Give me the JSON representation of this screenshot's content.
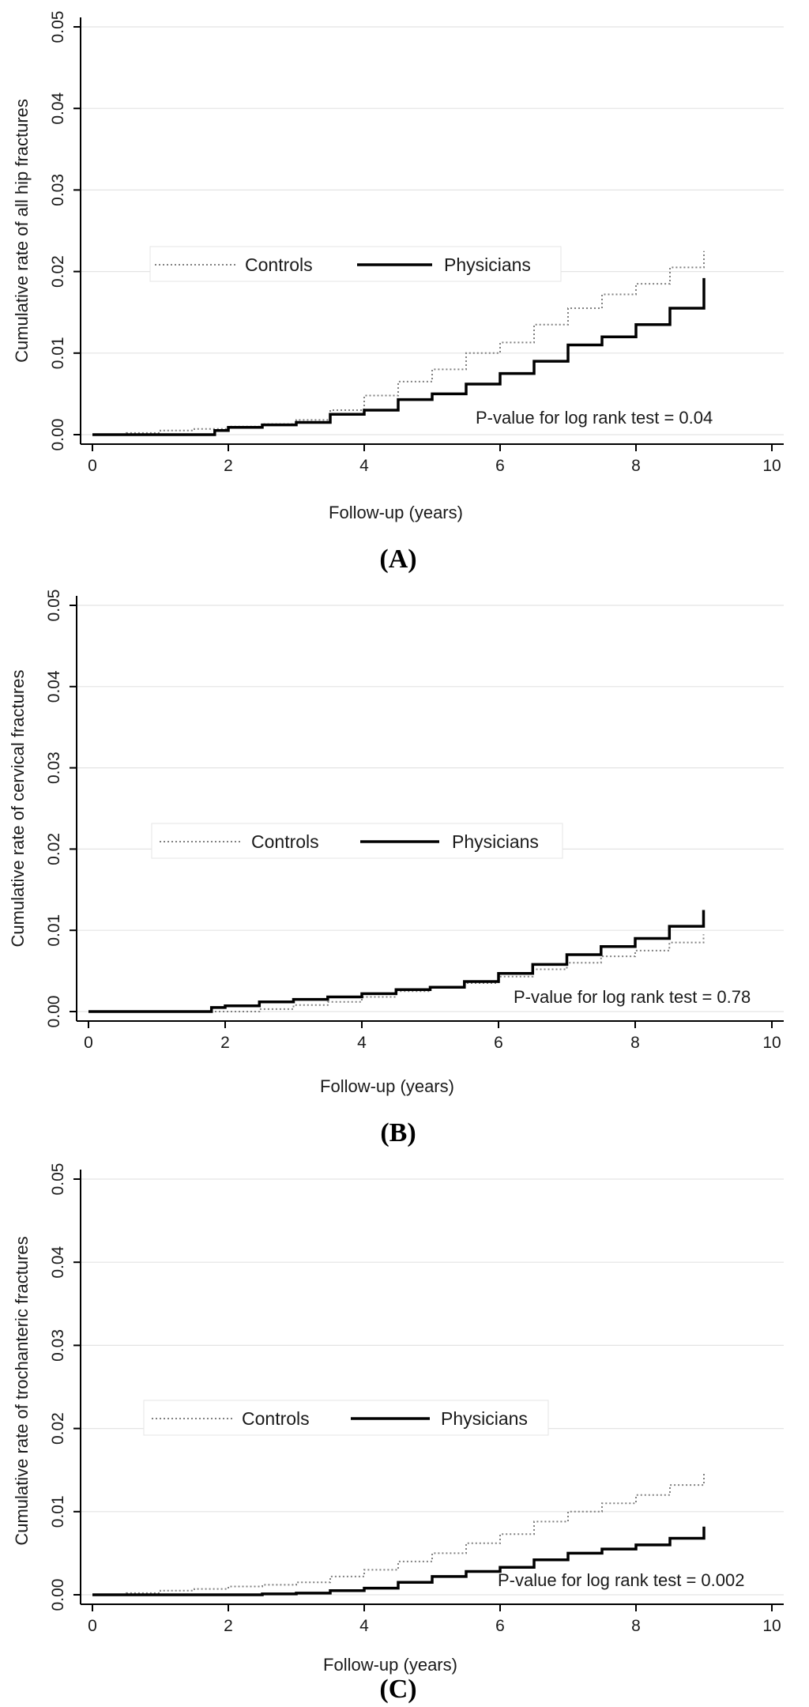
{
  "chart_data": [
    {
      "type": "line",
      "panel_label": "(A)",
      "title": "",
      "xlabel": "Follow-up (years)",
      "ylabel": "Cumulative rate of all hip fractures",
      "xlim": [
        0,
        10
      ],
      "ylim": [
        0,
        0.05
      ],
      "x_ticks": [
        "0",
        "2",
        "4",
        "6",
        "8",
        "10"
      ],
      "y_ticks": [
        "0.00",
        "0.01",
        "0.02",
        "0.03",
        "0.04",
        "0.05"
      ],
      "grid": true,
      "legend": [
        "Controls",
        "Physicians"
      ],
      "legend_placement": "upper-left, inside plot",
      "annotation": "P-value for log rank test = 0.04",
      "series": [
        {
          "name": "Controls",
          "style": "dotted",
          "color": "#808080",
          "points": [
            [
              0,
              0
            ],
            [
              0.5,
              0.0002
            ],
            [
              1,
              0.0005
            ],
            [
              1.5,
              0.0007
            ],
            [
              2,
              0.001
            ],
            [
              2.5,
              0.0013
            ],
            [
              3,
              0.0018
            ],
            [
              3.5,
              0.003
            ],
            [
              4,
              0.0048
            ],
            [
              4.5,
              0.0065
            ],
            [
              5,
              0.008
            ],
            [
              5.5,
              0.01
            ],
            [
              6,
              0.0113
            ],
            [
              6.5,
              0.0135
            ],
            [
              7,
              0.0155
            ],
            [
              7.5,
              0.0172
            ],
            [
              8,
              0.0185
            ],
            [
              8.5,
              0.0205
            ],
            [
              9,
              0.0225
            ]
          ]
        },
        {
          "name": "Physicians",
          "style": "solid",
          "color": "#000000",
          "points": [
            [
              0,
              0
            ],
            [
              1.6,
              0
            ],
            [
              1.8,
              0.0005
            ],
            [
              2,
              0.0009
            ],
            [
              2.5,
              0.0012
            ],
            [
              3,
              0.0015
            ],
            [
              3.5,
              0.0025
            ],
            [
              4,
              0.003
            ],
            [
              4.5,
              0.0043
            ],
            [
              5,
              0.005
            ],
            [
              5.5,
              0.0062
            ],
            [
              6,
              0.0075
            ],
            [
              6.5,
              0.009
            ],
            [
              7,
              0.011
            ],
            [
              7.5,
              0.012
            ],
            [
              8,
              0.0135
            ],
            [
              8.5,
              0.0155
            ],
            [
              9,
              0.0192
            ]
          ]
        }
      ]
    },
    {
      "type": "line",
      "panel_label": "(B)",
      "title": "",
      "xlabel": "Follow-up (years)",
      "ylabel": "Cumulative rate of cervical fractures",
      "xlim": [
        0,
        10
      ],
      "ylim": [
        0,
        0.05
      ],
      "x_ticks": [
        "0",
        "2",
        "4",
        "6",
        "8",
        "10"
      ],
      "y_ticks": [
        "0.00",
        "0.01",
        "0.02",
        "0.03",
        "0.04",
        "0.05"
      ],
      "grid": true,
      "legend": [
        "Controls",
        "Physicians"
      ],
      "legend_placement": "upper-left, inside plot",
      "annotation": "P-value for log rank test = 0.78",
      "series": [
        {
          "name": "Controls",
          "style": "dotted",
          "color": "#808080",
          "points": [
            [
              0,
              0
            ],
            [
              2,
              0
            ],
            [
              2.5,
              0.0003
            ],
            [
              3,
              0.0008
            ],
            [
              3.5,
              0.0012
            ],
            [
              4,
              0.0018
            ],
            [
              4.5,
              0.0025
            ],
            [
              5,
              0.003
            ],
            [
              5.5,
              0.0035
            ],
            [
              6,
              0.0043
            ],
            [
              6.5,
              0.0052
            ],
            [
              7,
              0.006
            ],
            [
              7.5,
              0.0068
            ],
            [
              8,
              0.0075
            ],
            [
              8.5,
              0.0085
            ],
            [
              9,
              0.0095
            ]
          ]
        },
        {
          "name": "Physicians",
          "style": "solid",
          "color": "#000000",
          "points": [
            [
              0,
              0
            ],
            [
              1.6,
              0
            ],
            [
              1.8,
              0.0005
            ],
            [
              2,
              0.0007
            ],
            [
              2.5,
              0.0012
            ],
            [
              3,
              0.0015
            ],
            [
              3.5,
              0.0018
            ],
            [
              4,
              0.0022
            ],
            [
              4.5,
              0.0027
            ],
            [
              5,
              0.003
            ],
            [
              5.5,
              0.0037
            ],
            [
              6,
              0.0047
            ],
            [
              6.5,
              0.0058
            ],
            [
              7,
              0.007
            ],
            [
              7.5,
              0.008
            ],
            [
              8,
              0.009
            ],
            [
              8.5,
              0.0105
            ],
            [
              9,
              0.0125
            ]
          ]
        }
      ]
    },
    {
      "type": "line",
      "panel_label": "(C)",
      "title": "",
      "xlabel": "Follow-up (years)",
      "ylabel": "Cumulative rate of trochanteric fractures",
      "xlim": [
        0,
        10
      ],
      "ylim": [
        0,
        0.05
      ],
      "x_ticks": [
        "0",
        "2",
        "4",
        "6",
        "8",
        "10"
      ],
      "y_ticks": [
        "0.00",
        "0.01",
        "0.02",
        "0.03",
        "0.04",
        "0.05"
      ],
      "grid": true,
      "legend": [
        "Controls",
        "Physicians"
      ],
      "legend_placement": "upper-left, inside plot",
      "annotation": "P-value for log rank test = 0.002",
      "series": [
        {
          "name": "Controls",
          "style": "dotted",
          "color": "#808080",
          "points": [
            [
              0,
              0
            ],
            [
              0.5,
              0.0002
            ],
            [
              1,
              0.0005
            ],
            [
              1.5,
              0.0007
            ],
            [
              2,
              0.001
            ],
            [
              2.5,
              0.0012
            ],
            [
              3,
              0.0015
            ],
            [
              3.5,
              0.0022
            ],
            [
              4,
              0.003
            ],
            [
              4.5,
              0.004
            ],
            [
              5,
              0.005
            ],
            [
              5.5,
              0.0062
            ],
            [
              6,
              0.0073
            ],
            [
              6.5,
              0.0088
            ],
            [
              7,
              0.01
            ],
            [
              7.5,
              0.011
            ],
            [
              8,
              0.012
            ],
            [
              8.5,
              0.0132
            ],
            [
              9,
              0.0148
            ]
          ]
        },
        {
          "name": "Physicians",
          "style": "solid",
          "color": "#000000",
          "points": [
            [
              0,
              0
            ],
            [
              2,
              0
            ],
            [
              2.5,
              0.0001
            ],
            [
              3,
              0.0002
            ],
            [
              3.5,
              0.0005
            ],
            [
              4,
              0.0008
            ],
            [
              4.5,
              0.0015
            ],
            [
              5,
              0.0022
            ],
            [
              5.5,
              0.0028
            ],
            [
              6,
              0.0033
            ],
            [
              6.5,
              0.0042
            ],
            [
              7,
              0.005
            ],
            [
              7.5,
              0.0055
            ],
            [
              8,
              0.006
            ],
            [
              8.5,
              0.0068
            ],
            [
              9,
              0.0082
            ]
          ]
        }
      ]
    }
  ]
}
